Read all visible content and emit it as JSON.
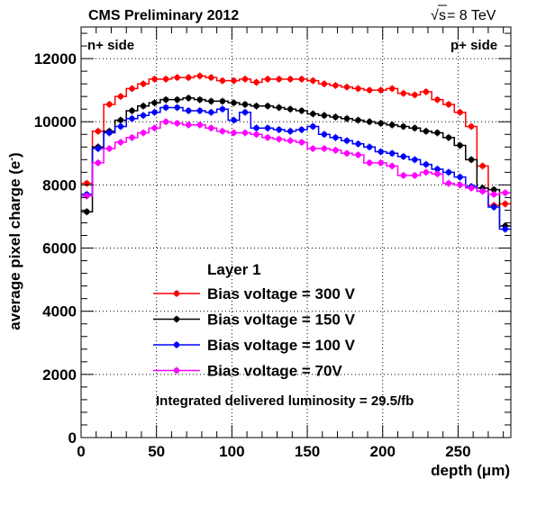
{
  "header": {
    "left": "CMS Preliminary 2012",
    "energy_sqrt": "s",
    "energy_prefix": "√",
    "energy_value": " = 8 TeV"
  },
  "annotations": {
    "n_side": "n+ side",
    "p_side": "p+ side",
    "legend_title": "Layer 1",
    "luminosity": "Integrated delivered luminosity = 29.5/fb"
  },
  "chart_data": {
    "type": "line",
    "style": "step histogram with error bars",
    "xlabel": "depth (μm)",
    "ylabel_main": "average pixel charge (e",
    "ylabel_sup": "-",
    "ylabel_end": ")",
    "xlim": [
      0,
      285
    ],
    "ylim": [
      0,
      13000
    ],
    "x_ticks": [
      0,
      50,
      100,
      150,
      200,
      250
    ],
    "y_ticks": [
      0,
      2000,
      4000,
      6000,
      8000,
      10000,
      12000
    ],
    "grid": true,
    "legend_placement": "center-left",
    "bin_width": 7.5,
    "x": [
      3.75,
      11.25,
      18.75,
      26.25,
      33.75,
      41.25,
      48.75,
      56.25,
      63.75,
      71.25,
      78.75,
      86.25,
      93.75,
      101.25,
      108.75,
      116.25,
      123.75,
      131.25,
      138.75,
      146.25,
      153.75,
      161.25,
      168.75,
      176.25,
      183.75,
      191.25,
      198.75,
      206.25,
      213.75,
      221.25,
      228.75,
      236.25,
      243.75,
      251.25,
      258.75,
      266.25,
      273.75,
      281.25
    ],
    "series": [
      {
        "name": "Bias voltage = 300 V",
        "color": "#ff0000",
        "values": [
          8050,
          9700,
          10550,
          10800,
          11050,
          11200,
          11350,
          11350,
          11400,
          11400,
          11450,
          11400,
          11300,
          11300,
          11350,
          11250,
          11350,
          11350,
          11350,
          11350,
          11300,
          11200,
          11150,
          11100,
          11050,
          11000,
          11000,
          11050,
          10900,
          10850,
          10950,
          10700,
          10550,
          10300,
          9850,
          8600,
          7350,
          7400
        ]
      },
      {
        "name": "Bias voltage = 150 V",
        "color": "#000000",
        "values": [
          7150,
          9200,
          9700,
          10050,
          10350,
          10500,
          10600,
          10700,
          10700,
          10750,
          10700,
          10650,
          10650,
          10600,
          10550,
          10500,
          10500,
          10450,
          10400,
          10350,
          10250,
          10200,
          10150,
          10100,
          10050,
          10000,
          9950,
          9900,
          9850,
          9800,
          9700,
          9650,
          9500,
          9250,
          8800,
          7900,
          7850,
          6700
        ]
      },
      {
        "name": "Bias voltage = 100 V",
        "color": "#0000ff",
        "values": [
          7700,
          9150,
          9650,
          9850,
          10100,
          10200,
          10300,
          10450,
          10450,
          10350,
          10350,
          10300,
          10400,
          10050,
          10300,
          9800,
          9800,
          9750,
          9700,
          9750,
          9850,
          9600,
          9500,
          9400,
          9300,
          9200,
          9050,
          9000,
          8900,
          8800,
          8650,
          8500,
          8400,
          8250,
          7950,
          7800,
          7300,
          6600
        ]
      },
      {
        "name": "Bias voltage = 70V",
        "color": "#ff00ff",
        "values": [
          7650,
          8700,
          9150,
          9350,
          9500,
          9650,
          9800,
          10000,
          9950,
          9900,
          9900,
          9800,
          9700,
          9650,
          9650,
          9600,
          9500,
          9450,
          9400,
          9350,
          9150,
          9150,
          9100,
          9000,
          8950,
          8700,
          8700,
          8600,
          8300,
          8300,
          8400,
          8350,
          8050,
          8000,
          7900,
          7800,
          7700,
          7750
        ]
      }
    ]
  }
}
